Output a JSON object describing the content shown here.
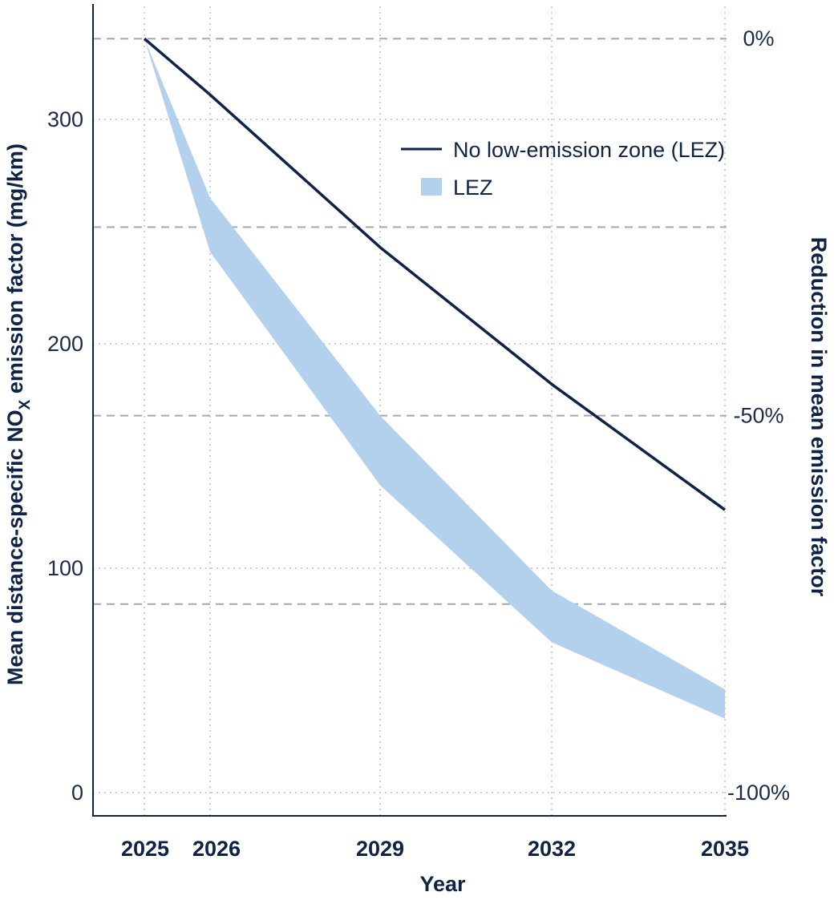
{
  "chart_data": {
    "type": "line",
    "x": [
      2025,
      2026,
      2029,
      2032,
      2035
    ],
    "xlabel": "Year",
    "ylabel": "Mean distance-specific NO",
    "ylabel_sub": "X",
    "ylabel_tail": " emission factor (mg/km)",
    "ylabel_right": "Reduction in mean emission factor",
    "ylim": [
      0,
      336
    ],
    "yticks": [
      0,
      100,
      200,
      300
    ],
    "yticks_right": [
      "0%",
      "-50%",
      "-100%"
    ],
    "yticks_right_pct": [
      0,
      -50,
      -100
    ],
    "xticks": [
      "2025",
      "2026",
      "2029",
      "2032",
      "2035"
    ],
    "grid": true,
    "legend_position": "top-right",
    "series": [
      {
        "name": "No low-emission zone (LEZ)",
        "kind": "line",
        "color": "#0f2347",
        "values": [
          336,
          311,
          243,
          182,
          126
        ]
      },
      {
        "name": "LEZ",
        "kind": "band",
        "color": "#b3d1ec",
        "upper": [
          336,
          265,
          168,
          90,
          46
        ],
        "lower": [
          336,
          241,
          137,
          67,
          33
        ]
      }
    ]
  }
}
